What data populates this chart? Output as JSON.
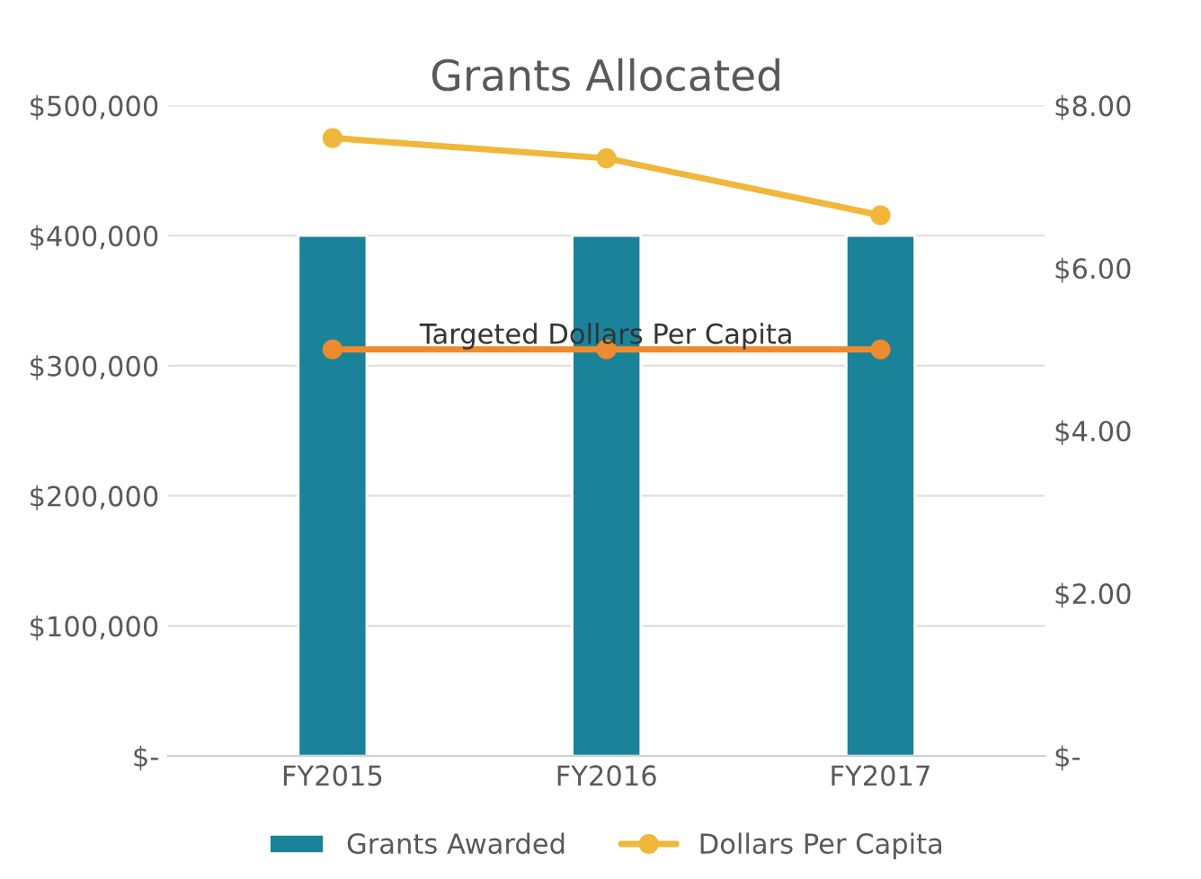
{
  "chart_data": {
    "type": "bar",
    "title": "Grants Allocated",
    "categories": [
      "FY2015",
      "FY2016",
      "FY2017"
    ],
    "series": [
      {
        "name": "Grants Awarded",
        "color": "#1a8299",
        "values": [
          400000,
          400000,
          400000
        ]
      },
      {
        "name": "Dollars Per Capita",
        "type": "line",
        "axis": "y2",
        "color": "#f0b73a",
        "marker": "circle",
        "values": [
          7.6,
          7.35,
          6.65
        ]
      },
      {
        "name": "Targeted Dollars Per Capita",
        "type": "line",
        "axis": "y2",
        "color": "#ee8b2e",
        "marker": "circle",
        "values": [
          5.0,
          5.0,
          5.0
        ]
      }
    ],
    "ylim": [
      0,
      500000
    ],
    "yticks": [
      {
        "value": 0,
        "label": "$-"
      },
      {
        "value": 100000,
        "label": "$100,000"
      },
      {
        "value": 200000,
        "label": "$200,000"
      },
      {
        "value": 300000,
        "label": "$300,000"
      },
      {
        "value": 400000,
        "label": "$400,000"
      },
      {
        "value": 500000,
        "label": "$500,000"
      }
    ],
    "y2lim": [
      0,
      8
    ],
    "y2ticks": [
      {
        "value": 0,
        "label": "$-"
      },
      {
        "value": 2,
        "label": "$2.00"
      },
      {
        "value": 4,
        "label": "$4.00"
      },
      {
        "value": 6,
        "label": "$6.00"
      },
      {
        "value": 8,
        "label": "$8.00"
      }
    ],
    "grid": "y",
    "legend": "bottom"
  }
}
